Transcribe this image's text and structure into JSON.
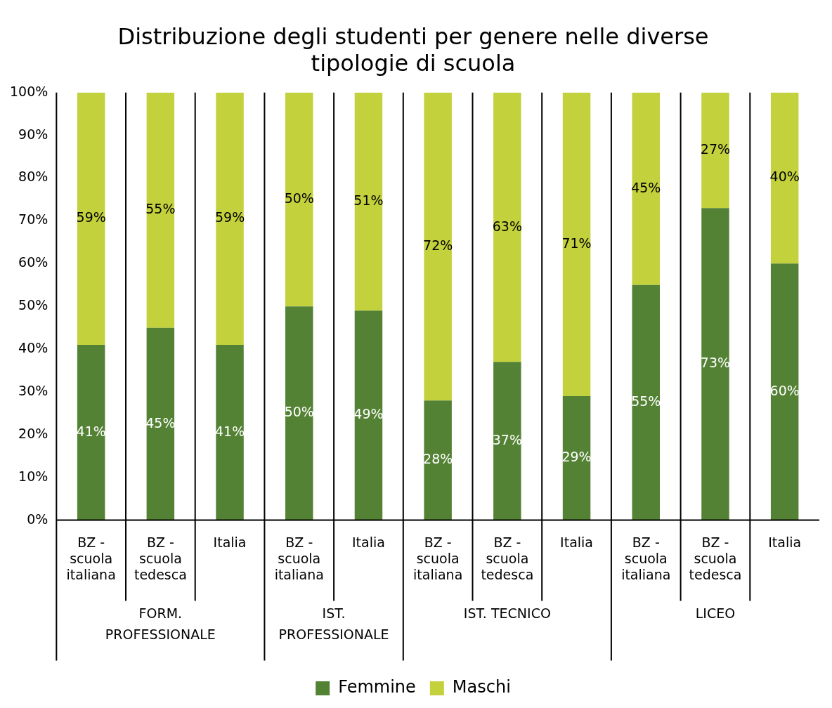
{
  "chart_data": {
    "type": "bar",
    "stacked": true,
    "title": "Distribuzione degli studenti per genere nelle diverse tipologie di scuola",
    "categories": [
      "BZ - scuola italiana",
      "BZ - scuola tedesca",
      "Italia",
      "BZ - scuola italiana",
      "Italia",
      "BZ - scuola italiana",
      "BZ - scuola tedesca",
      "Italia",
      "BZ - scuola italiana",
      "BZ - scuola tedesca",
      "Italia"
    ],
    "annotations": [
      "FORM. PROFESSIONALE",
      "IST. PROFESSIONALE",
      "IST. TECNICO",
      "LICEO"
    ],
    "series": [
      {
        "name": "Femmine",
        "color": "#548235",
        "values": [
          41,
          45,
          41,
          50,
          49,
          28,
          37,
          29,
          55,
          73,
          60
        ],
        "value_labels": [
          "41%",
          "45%",
          "41%",
          "50%",
          "49%",
          "28%",
          "37%",
          "29%",
          "55%",
          "73%",
          "60%"
        ]
      },
      {
        "name": "Maschi",
        "color": "#c3d13c",
        "values": [
          59,
          55,
          59,
          50,
          51,
          72,
          63,
          71,
          45,
          27,
          40
        ],
        "value_labels": [
          "59%",
          "55%",
          "59%",
          "50%",
          "51%",
          "72%",
          "63%",
          "71%",
          "45%",
          "27%",
          "40%"
        ]
      }
    ],
    "ylim": [
      0,
      100
    ],
    "yticks": [
      {
        "value": 0,
        "label": "0%"
      },
      {
        "value": 10,
        "label": "10%"
      },
      {
        "value": 20,
        "label": "20%"
      },
      {
        "value": 30,
        "label": "30%"
      },
      {
        "value": 40,
        "label": "40%"
      },
      {
        "value": 50,
        "label": "50%"
      },
      {
        "value": 60,
        "label": "60%"
      },
      {
        "value": 70,
        "label": "70%"
      },
      {
        "value": 80,
        "label": "80%"
      },
      {
        "value": 90,
        "label": "90%"
      },
      {
        "value": 100,
        "label": "100%"
      }
    ],
    "grid": false,
    "legend": "bottom"
  }
}
